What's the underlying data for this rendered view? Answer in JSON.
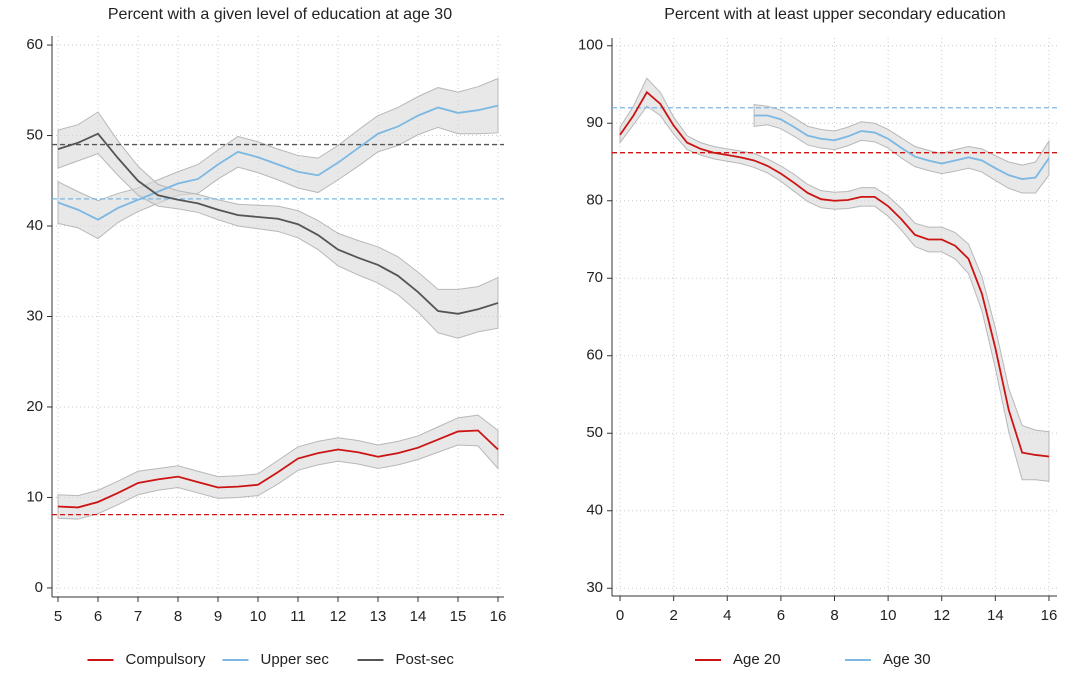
{
  "chart_data": [
    {
      "type": "line",
      "title": "Percent with a given level of education at age 30",
      "x": [
        5,
        5.5,
        6,
        6.5,
        7,
        7.5,
        8,
        8.5,
        9,
        9.5,
        10,
        10.5,
        11,
        11.5,
        12,
        12.5,
        13,
        13.5,
        14,
        14.5,
        15,
        15.5,
        16
      ],
      "xlim": [
        4.85,
        16.15
      ],
      "xticks": [
        5,
        6,
        7,
        8,
        9,
        10,
        11,
        12,
        13,
        14,
        15,
        16
      ],
      "ylim": [
        -1,
        61
      ],
      "yticks": [
        0,
        10,
        20,
        30,
        40,
        50,
        60
      ],
      "grid": true,
      "legend": "bottom",
      "series": [
        {
          "name": "Compulsory",
          "color": "#cc1414",
          "reference": 8.1,
          "values": [
            9.0,
            8.9,
            9.5,
            10.5,
            11.6,
            12.0,
            12.3,
            11.7,
            11.1,
            11.2,
            11.4,
            12.8,
            14.3,
            14.9,
            15.3,
            15.0,
            14.5,
            14.9,
            15.5,
            16.4,
            17.3,
            17.4,
            15.3
          ],
          "lower": [
            7.7,
            7.6,
            8.2,
            9.2,
            10.3,
            10.8,
            11.1,
            10.5,
            9.9,
            10.0,
            10.2,
            11.5,
            13.0,
            13.6,
            14.0,
            13.7,
            13.2,
            13.6,
            14.2,
            15.0,
            15.8,
            15.7,
            13.2
          ],
          "upper": [
            10.3,
            10.2,
            10.8,
            11.8,
            12.9,
            13.2,
            13.5,
            12.9,
            12.3,
            12.4,
            12.6,
            14.1,
            15.6,
            16.2,
            16.6,
            16.3,
            15.8,
            16.2,
            16.8,
            17.8,
            18.8,
            19.1,
            17.4
          ]
        },
        {
          "name": "Upper sec",
          "color": "#7cb8e2",
          "reference": 43,
          "values": [
            42.6,
            41.8,
            40.7,
            42.0,
            42.9,
            43.8,
            44.7,
            45.2,
            46.8,
            48.2,
            47.6,
            46.8,
            46.0,
            45.6,
            47.0,
            48.6,
            50.2,
            51.0,
            52.2,
            53.1,
            52.5,
            52.8,
            53.3
          ],
          "lower": [
            40.3,
            39.8,
            38.6,
            40.4,
            41.6,
            42.5,
            43.4,
            43.6,
            45.2,
            46.5,
            45.9,
            45.1,
            44.2,
            43.7,
            45.1,
            46.6,
            48.2,
            48.9,
            50.1,
            50.9,
            50.2,
            50.2,
            50.3
          ],
          "upper": [
            44.9,
            43.8,
            42.8,
            43.6,
            44.2,
            45.1,
            46.0,
            46.8,
            48.4,
            49.9,
            49.3,
            48.5,
            47.8,
            47.5,
            48.9,
            50.6,
            52.2,
            53.1,
            54.3,
            55.3,
            54.8,
            55.4,
            56.3
          ]
        },
        {
          "name": "Post-sec",
          "color": "#555555",
          "reference": 49,
          "values": [
            48.5,
            49.2,
            50.2,
            47.5,
            45.0,
            43.4,
            42.9,
            42.5,
            41.8,
            41.2,
            41.0,
            40.8,
            40.2,
            39.0,
            37.4,
            36.5,
            35.7,
            34.5,
            32.7,
            30.6,
            30.3,
            30.8,
            31.5
          ],
          "lower": [
            46.4,
            47.2,
            48.0,
            45.6,
            43.4,
            42.2,
            41.9,
            41.5,
            40.7,
            40.0,
            39.7,
            39.4,
            38.7,
            37.4,
            35.6,
            34.6,
            33.7,
            32.4,
            30.5,
            28.2,
            27.6,
            28.3,
            28.7
          ],
          "upper": [
            50.6,
            51.2,
            52.6,
            49.4,
            46.6,
            44.6,
            43.9,
            43.5,
            42.9,
            42.4,
            42.3,
            42.2,
            41.7,
            40.6,
            39.2,
            38.4,
            37.7,
            36.6,
            34.9,
            33.0,
            33.0,
            33.3,
            34.3
          ]
        }
      ]
    },
    {
      "type": "line",
      "title": "Percent with at least upper secondary education",
      "x": [
        0,
        0.5,
        1,
        1.5,
        2,
        2.5,
        3,
        3.5,
        4,
        4.5,
        5,
        5.5,
        6,
        6.5,
        7,
        7.5,
        8,
        8.5,
        9,
        9.5,
        10,
        10.5,
        11,
        11.5,
        12,
        12.5,
        13,
        13.5,
        14,
        14.5,
        15,
        15.5,
        16
      ],
      "xlim": [
        -0.3,
        16.3
      ],
      "xticks": [
        0,
        2,
        4,
        6,
        8,
        10,
        12,
        14,
        16
      ],
      "ylim": [
        29,
        101
      ],
      "yticks": [
        30,
        40,
        50,
        60,
        70,
        80,
        90,
        100
      ],
      "grid": true,
      "legend": "bottom",
      "series": [
        {
          "name": "Age 20",
          "color": "#cc1414",
          "reference": 86.2,
          "values": [
            88.5,
            91.0,
            94.0,
            92.5,
            89.7,
            87.5,
            86.7,
            86.2,
            85.9,
            85.6,
            85.2,
            84.5,
            83.5,
            82.3,
            81.0,
            80.2,
            80.0,
            80.1,
            80.5,
            80.5,
            79.3,
            77.6,
            75.6,
            75.0,
            75.0,
            74.2,
            72.5,
            68.0,
            61.0,
            53.0,
            47.5,
            47.2,
            47.0
          ],
          "lower": [
            87.5,
            89.8,
            92.2,
            91.0,
            88.6,
            86.6,
            85.9,
            85.4,
            85.1,
            84.8,
            84.3,
            83.6,
            82.5,
            81.2,
            79.9,
            79.1,
            78.9,
            79.0,
            79.3,
            79.3,
            78.0,
            76.2,
            74.1,
            73.4,
            73.4,
            72.5,
            70.6,
            65.8,
            58.4,
            50.2,
            44.0,
            44.0,
            43.8
          ],
          "upper": [
            89.5,
            92.2,
            95.8,
            94.0,
            90.8,
            88.4,
            87.5,
            87.0,
            86.7,
            86.4,
            86.1,
            85.4,
            84.5,
            83.4,
            82.1,
            81.3,
            81.1,
            81.2,
            81.7,
            81.7,
            80.6,
            79.0,
            77.1,
            76.6,
            76.6,
            75.9,
            74.4,
            70.2,
            63.6,
            55.8,
            51.0,
            50.4,
            50.2
          ]
        },
        {
          "name": "Age 30",
          "color": "#7cb8e2",
          "reference": 92,
          "values": [
            null,
            null,
            null,
            null,
            null,
            null,
            null,
            null,
            null,
            null,
            91.0,
            91.0,
            90.5,
            89.5,
            88.4,
            88.0,
            87.8,
            88.3,
            89.0,
            88.8,
            88.0,
            86.8,
            85.7,
            85.2,
            84.8,
            85.2,
            85.6,
            85.2,
            84.2,
            83.3,
            82.8,
            83.0,
            85.5
          ],
          "lower": [
            null,
            null,
            null,
            null,
            null,
            null,
            null,
            null,
            null,
            null,
            89.6,
            89.8,
            89.3,
            88.3,
            87.2,
            86.8,
            86.6,
            87.1,
            87.8,
            87.6,
            86.8,
            85.5,
            84.4,
            83.9,
            83.5,
            83.8,
            84.2,
            83.7,
            82.6,
            81.6,
            81.0,
            81.0,
            83.3
          ],
          "upper": [
            null,
            null,
            null,
            null,
            null,
            null,
            null,
            null,
            null,
            null,
            92.4,
            92.2,
            91.7,
            90.7,
            89.6,
            89.2,
            89.0,
            89.5,
            90.2,
            90.0,
            89.2,
            88.1,
            87.0,
            86.5,
            86.1,
            86.6,
            87.0,
            86.7,
            85.8,
            85.0,
            84.6,
            85.0,
            87.7
          ]
        }
      ]
    }
  ]
}
